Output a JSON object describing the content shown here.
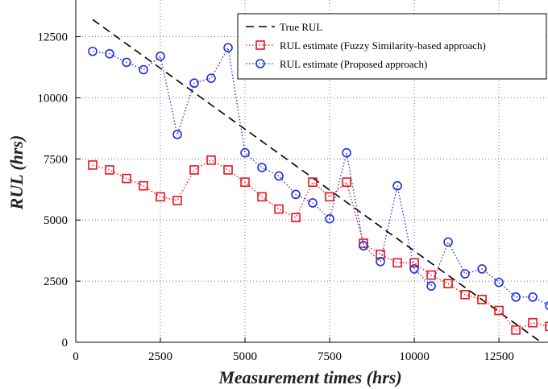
{
  "chart_data": {
    "type": "line",
    "xlabel": "Measurement times (hrs)",
    "ylabel": "RUL (hrs)",
    "xlim": [
      0,
      13950
    ],
    "ylim": [
      0,
      14000
    ],
    "x_ticks": [
      0,
      2500,
      5000,
      7500,
      10000,
      12500
    ],
    "y_ticks": [
      0,
      2500,
      5000,
      7500,
      10000,
      12500
    ],
    "grid": true,
    "legend_position": "top-right",
    "series": [
      {
        "name": "True RUL",
        "color": "#000000",
        "style": "dashed",
        "marker": "none",
        "x": [
          500,
          13750
        ],
        "y": [
          13200,
          0
        ]
      },
      {
        "name": "RUL estimate (Fuzzy Similarity-based approach)",
        "color": "#e8141c",
        "style": "dotted",
        "marker": "square",
        "x": [
          500,
          1000,
          1500,
          2000,
          2500,
          3000,
          3500,
          4000,
          4500,
          5000,
          5500,
          6000,
          6500,
          7000,
          7500,
          8000,
          8500,
          9000,
          9500,
          10000,
          10500,
          11000,
          11500,
          12000,
          12500,
          13000,
          13500,
          14000
        ],
        "y": [
          7250,
          7050,
          6700,
          6400,
          5950,
          5800,
          7050,
          7450,
          7050,
          6550,
          5950,
          5450,
          5100,
          6550,
          5950,
          6550,
          4050,
          3600,
          3250,
          3250,
          2750,
          2400,
          1950,
          1750,
          1300,
          500,
          800,
          650
        ]
      },
      {
        "name": "RUL estimate (Proposed approach)",
        "color": "#1f2ed6",
        "style": "dotted",
        "marker": "circle",
        "x": [
          500,
          1000,
          1500,
          2000,
          2500,
          3000,
          3500,
          4000,
          4500,
          5000,
          5500,
          6000,
          6500,
          7000,
          7500,
          8000,
          8500,
          9000,
          9500,
          10000,
          10500,
          11000,
          11500,
          12000,
          12500,
          13000,
          13500,
          14000
        ],
        "y": [
          11900,
          11800,
          11450,
          11150,
          11700,
          8500,
          10600,
          10800,
          12050,
          7750,
          7150,
          6800,
          6050,
          5700,
          5050,
          7750,
          3950,
          3300,
          6400,
          3000,
          2300,
          4100,
          2800,
          3000,
          2450,
          1850,
          1850,
          1500
        ]
      }
    ]
  }
}
